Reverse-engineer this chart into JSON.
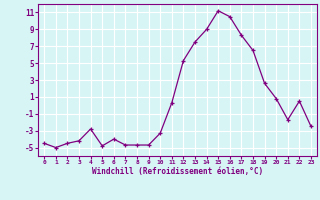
{
  "x": [
    0,
    1,
    2,
    3,
    4,
    5,
    6,
    7,
    8,
    9,
    10,
    11,
    12,
    13,
    14,
    15,
    16,
    17,
    18,
    19,
    20,
    21,
    22,
    23
  ],
  "y": [
    -4.5,
    -5.0,
    -4.5,
    -4.2,
    -2.8,
    -4.8,
    -4.0,
    -4.7,
    -4.7,
    -4.7,
    -3.3,
    0.3,
    5.3,
    7.5,
    9.0,
    11.2,
    10.5,
    8.3,
    6.5,
    2.6,
    0.8,
    -1.7,
    0.5,
    -2.5
  ],
  "line_color": "#800080",
  "marker": "+",
  "marker_size": 3,
  "bg_color": "#d8f5f5",
  "grid_color": "#ffffff",
  "xlabel": "Windchill (Refroidissement éolien,°C)",
  "ylabel_ticks": [
    -5,
    -3,
    -1,
    1,
    3,
    5,
    7,
    9,
    11
  ],
  "ylim": [
    -6,
    12
  ],
  "xlim": [
    -0.5,
    23.5
  ],
  "xlabel_color": "#800080",
  "tick_color": "#800080",
  "spine_color": "#800080",
  "font_family": "monospace",
  "xtick_fontsize": 4.5,
  "ytick_fontsize": 5.5,
  "xlabel_fontsize": 5.5
}
